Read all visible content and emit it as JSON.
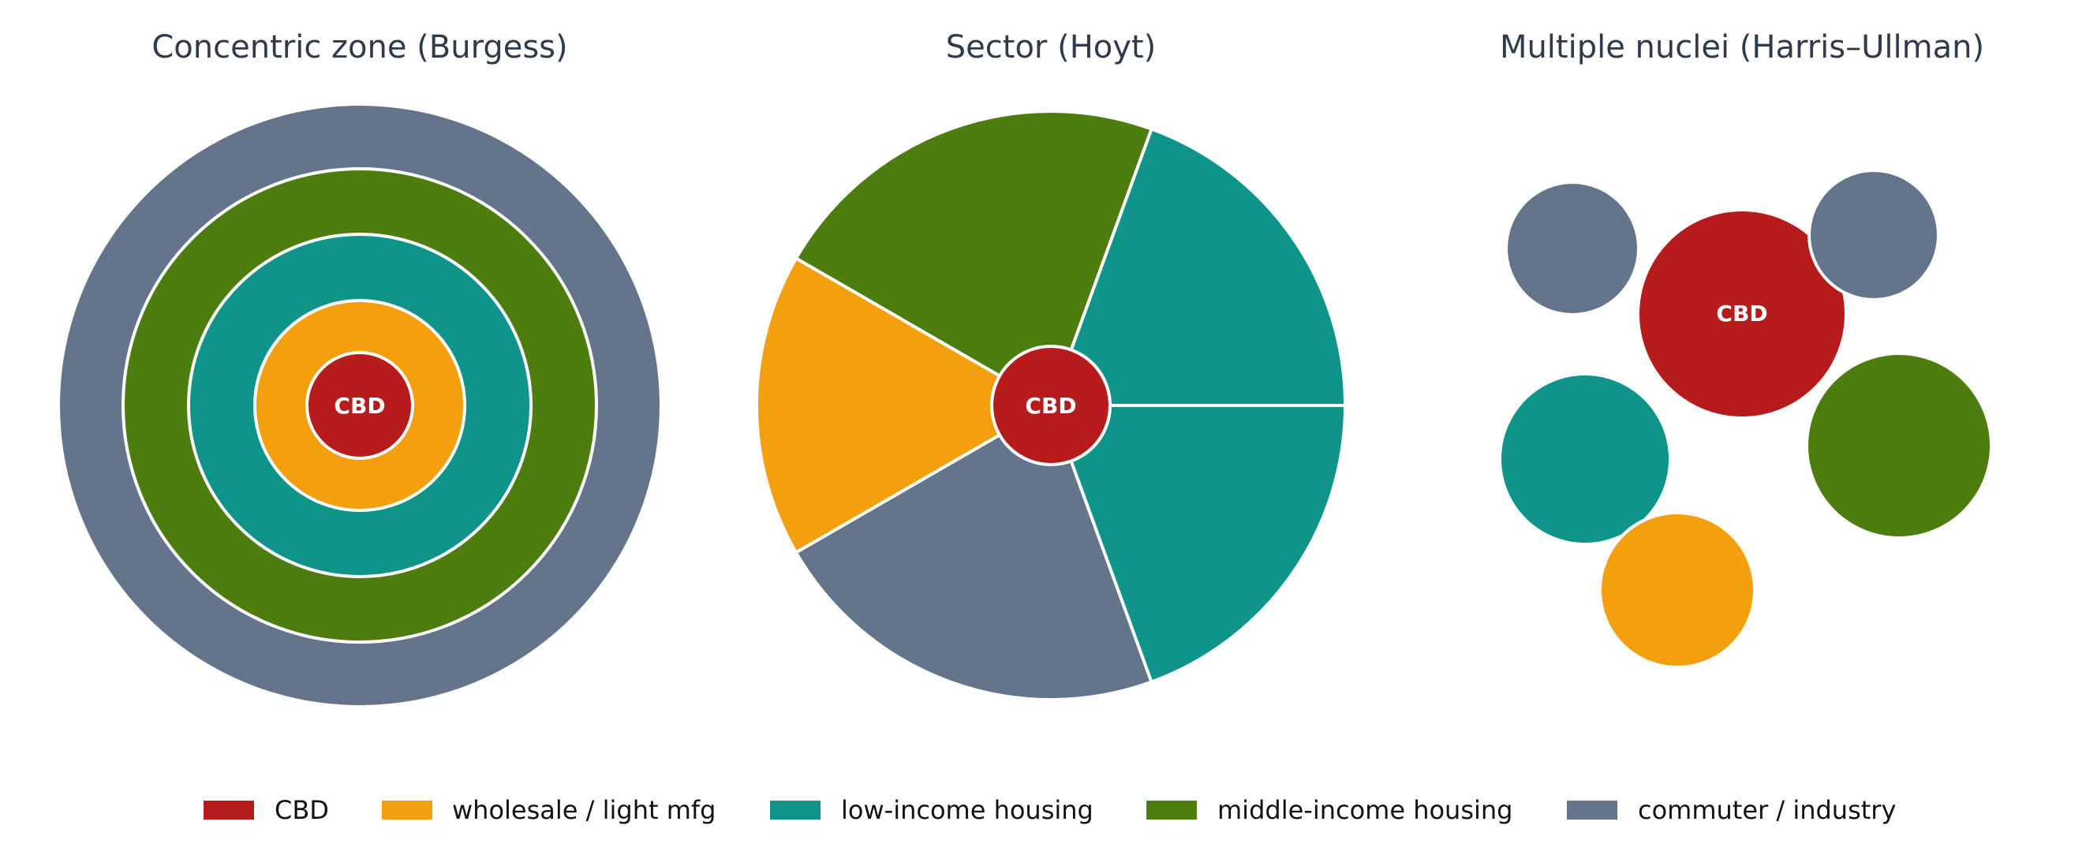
{
  "colors": {
    "cbd": "#b71c1c",
    "wholesale": "#f39f0e",
    "low_income": "#0e9488",
    "middle_income": "#4d7c0f",
    "commuter": "#64748b",
    "outline": "#ffffff",
    "title": "#2e3b4e"
  },
  "panels": {
    "concentric": {
      "title": "Concentric zone (Burgess)",
      "cbd_label": "CBD"
    },
    "sector": {
      "title": "Sector (Hoyt)",
      "cbd_label": "CBD"
    },
    "nuclei": {
      "title": "Multiple nuclei (Harris–Ullman)",
      "cbd_label": "CBD"
    }
  },
  "legend": [
    {
      "label": "CBD",
      "color": "#b71c1c"
    },
    {
      "label": "wholesale / light mfg",
      "color": "#f39f0e"
    },
    {
      "label": "low-income housing",
      "color": "#0e9488"
    },
    {
      "label": "middle-income housing",
      "color": "#4d7c0f"
    },
    {
      "label": "commuter / industry",
      "color": "#64748b"
    }
  ]
}
